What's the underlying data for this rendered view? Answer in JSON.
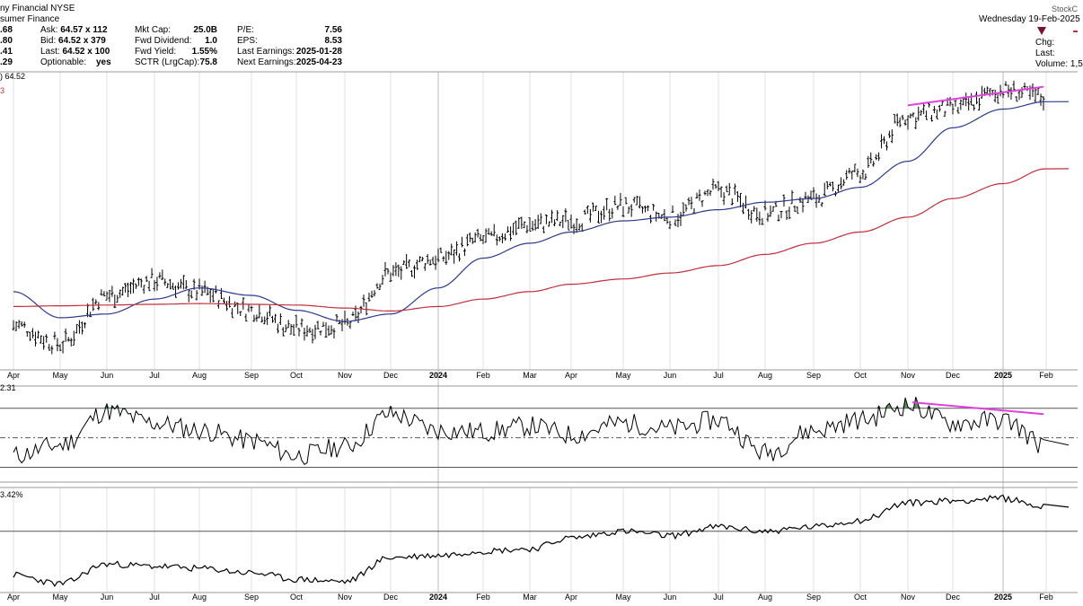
{
  "header": {
    "company": "ny Financial",
    "exchange": "NYSE",
    "industry": "sumer Finance",
    "date": "Wednesday  19-Feb-2025",
    "brand": "StockC",
    "left_values": [
      ".68",
      ".80",
      ".41",
      ".29"
    ],
    "quote": [
      {
        "label": "Ask:",
        "value": "64.57 x 112"
      },
      {
        "label": "Bid:",
        "value": "64.52 x 379"
      },
      {
        "label": "Last:",
        "value": "64.52 x 100"
      },
      {
        "label": "Optionable:",
        "value": "yes"
      }
    ],
    "fundamentals": [
      {
        "label": "Mkt Cap:",
        "value": "25.0B"
      },
      {
        "label": "Fwd Dividend:",
        "value": "1.0"
      },
      {
        "label": "Fwd Yield:",
        "value": "1.55%"
      },
      {
        "label": "SCTR (LrgCap):",
        "value": "75.8"
      }
    ],
    "earnings": [
      {
        "label": "P/E:",
        "value": "7.56"
      },
      {
        "label": "EPS:",
        "value": "8.53"
      },
      {
        "label": "Last Earnings:",
        "value": "2025-01-28"
      },
      {
        "label": "Next Earnings:",
        "value": "2025-04-23"
      }
    ],
    "right_labels": [
      "Chg:",
      "Last:",
      "Volume: 1,5"
    ],
    "price_line_label": ") 64.52",
    "ma_label": "3",
    "rsi_label": "2.31",
    "pct_label": "3.42%"
  },
  "colors": {
    "price": "#000000",
    "ma50": "#2b3a8c",
    "ma200": "#c0303a",
    "trendline": "#e040e0",
    "overbought_fill": "#4a7a4a",
    "down_marker": "#7a1030",
    "grid": "#cccccc"
  },
  "chart_data": [
    {
      "type": "line",
      "title": "",
      "ohlc_style": "bar",
      "x": [
        "2023-04",
        "2023-05",
        "2023-06",
        "2023-07",
        "2023-08",
        "2023-09",
        "2023-10",
        "2023-11",
        "2023-12",
        "2024-01",
        "2024-02",
        "2024-03",
        "2024-04",
        "2024-05",
        "2024-06",
        "2024-07",
        "2024-08",
        "2024-09",
        "2024-10",
        "2024-11",
        "2024-12",
        "2025-01",
        "2025-02"
      ],
      "x_tick_labels": [
        "Apr",
        "May",
        "Jun",
        "Jul",
        "Aug",
        "Sep",
        "Oct",
        "Nov",
        "Dec",
        "2024",
        "Feb",
        "Mar",
        "Apr",
        "May",
        "Jun",
        "Jul",
        "Aug",
        "Sep",
        "Oct",
        "Nov",
        "Dec",
        "2025",
        "Feb"
      ],
      "series": [
        {
          "values": [
            34.0,
            31.5,
            38.0,
            40.0,
            38.5,
            36.0,
            33.5,
            34.0,
            41.0,
            43.0,
            45.5,
            47.5,
            48.0,
            50.0,
            48.5,
            52.0,
            49.0,
            51.0,
            54.5,
            62.0,
            63.0,
            65.5,
            64.5
          ]
        },
        {
          "values": [
            38.5,
            35.0,
            35.5,
            37.5,
            39.0,
            38.0,
            36.0,
            34.5,
            35.5,
            39.0,
            43.0,
            45.0,
            46.5,
            48.0,
            48.5,
            49.5,
            50.5,
            51.0,
            52.5,
            56.0,
            60.5,
            63.0,
            64.0
          ]
        },
        {
          "values": [
            36.5,
            36.6,
            36.7,
            36.8,
            36.9,
            36.8,
            36.7,
            36.3,
            35.9,
            36.5,
            37.5,
            38.5,
            39.5,
            40.2,
            41.0,
            42.0,
            43.5,
            45.0,
            46.5,
            48.5,
            51.0,
            53.0,
            55.0
          ]
        }
      ],
      "trendline": {
        "x": [
          "2024-11",
          "2025-01"
        ],
        "values": [
          63.5,
          66.0
        ]
      },
      "ylim": [
        28,
        68
      ],
      "grid": true
    },
    {
      "type": "line",
      "title": "",
      "x": [
        "2023-04",
        "2023-05",
        "2023-06",
        "2023-07",
        "2023-08",
        "2023-09",
        "2023-10",
        "2023-11",
        "2023-12",
        "2024-01",
        "2024-02",
        "2024-03",
        "2024-04",
        "2024-05",
        "2024-06",
        "2024-07",
        "2024-08",
        "2024-09",
        "2024-10",
        "2024-11",
        "2024-12",
        "2025-01",
        "2025-02"
      ],
      "series": [
        {
          "values": [
            38,
            45,
            68,
            60,
            55,
            48,
            38,
            44,
            66,
            55,
            54,
            58,
            52,
            60,
            56,
            62,
            40,
            55,
            62,
            72,
            60,
            62,
            45
          ]
        }
      ],
      "reference_lines": [
        70,
        50,
        30
      ],
      "trendline": {
        "x": [
          "2024-11",
          "2025-01"
        ],
        "values": [
          74,
          66
        ]
      },
      "ylim": [
        20,
        85
      ],
      "grid": false
    },
    {
      "type": "line",
      "title": "",
      "x": [
        "2023-04",
        "2023-05",
        "2023-06",
        "2023-07",
        "2023-08",
        "2023-09",
        "2023-10",
        "2023-11",
        "2023-12",
        "2024-01",
        "2024-02",
        "2024-03",
        "2024-04",
        "2024-05",
        "2024-06",
        "2024-07",
        "2024-08",
        "2024-09",
        "2024-10",
        "2024-11",
        "2024-12",
        "2025-01",
        "2025-02"
      ],
      "series": [
        {
          "values": [
            -30,
            -34,
            -25,
            -26,
            -27,
            -29,
            -32,
            -33,
            -22,
            -21,
            -19,
            -18,
            -13,
            -10,
            -12,
            -8,
            -10,
            -8,
            -5,
            3,
            4,
            5,
            1
          ]
        }
      ],
      "reference_lines": [
        -10
      ],
      "ylim": [
        -38,
        10
      ],
      "grid": true
    }
  ]
}
